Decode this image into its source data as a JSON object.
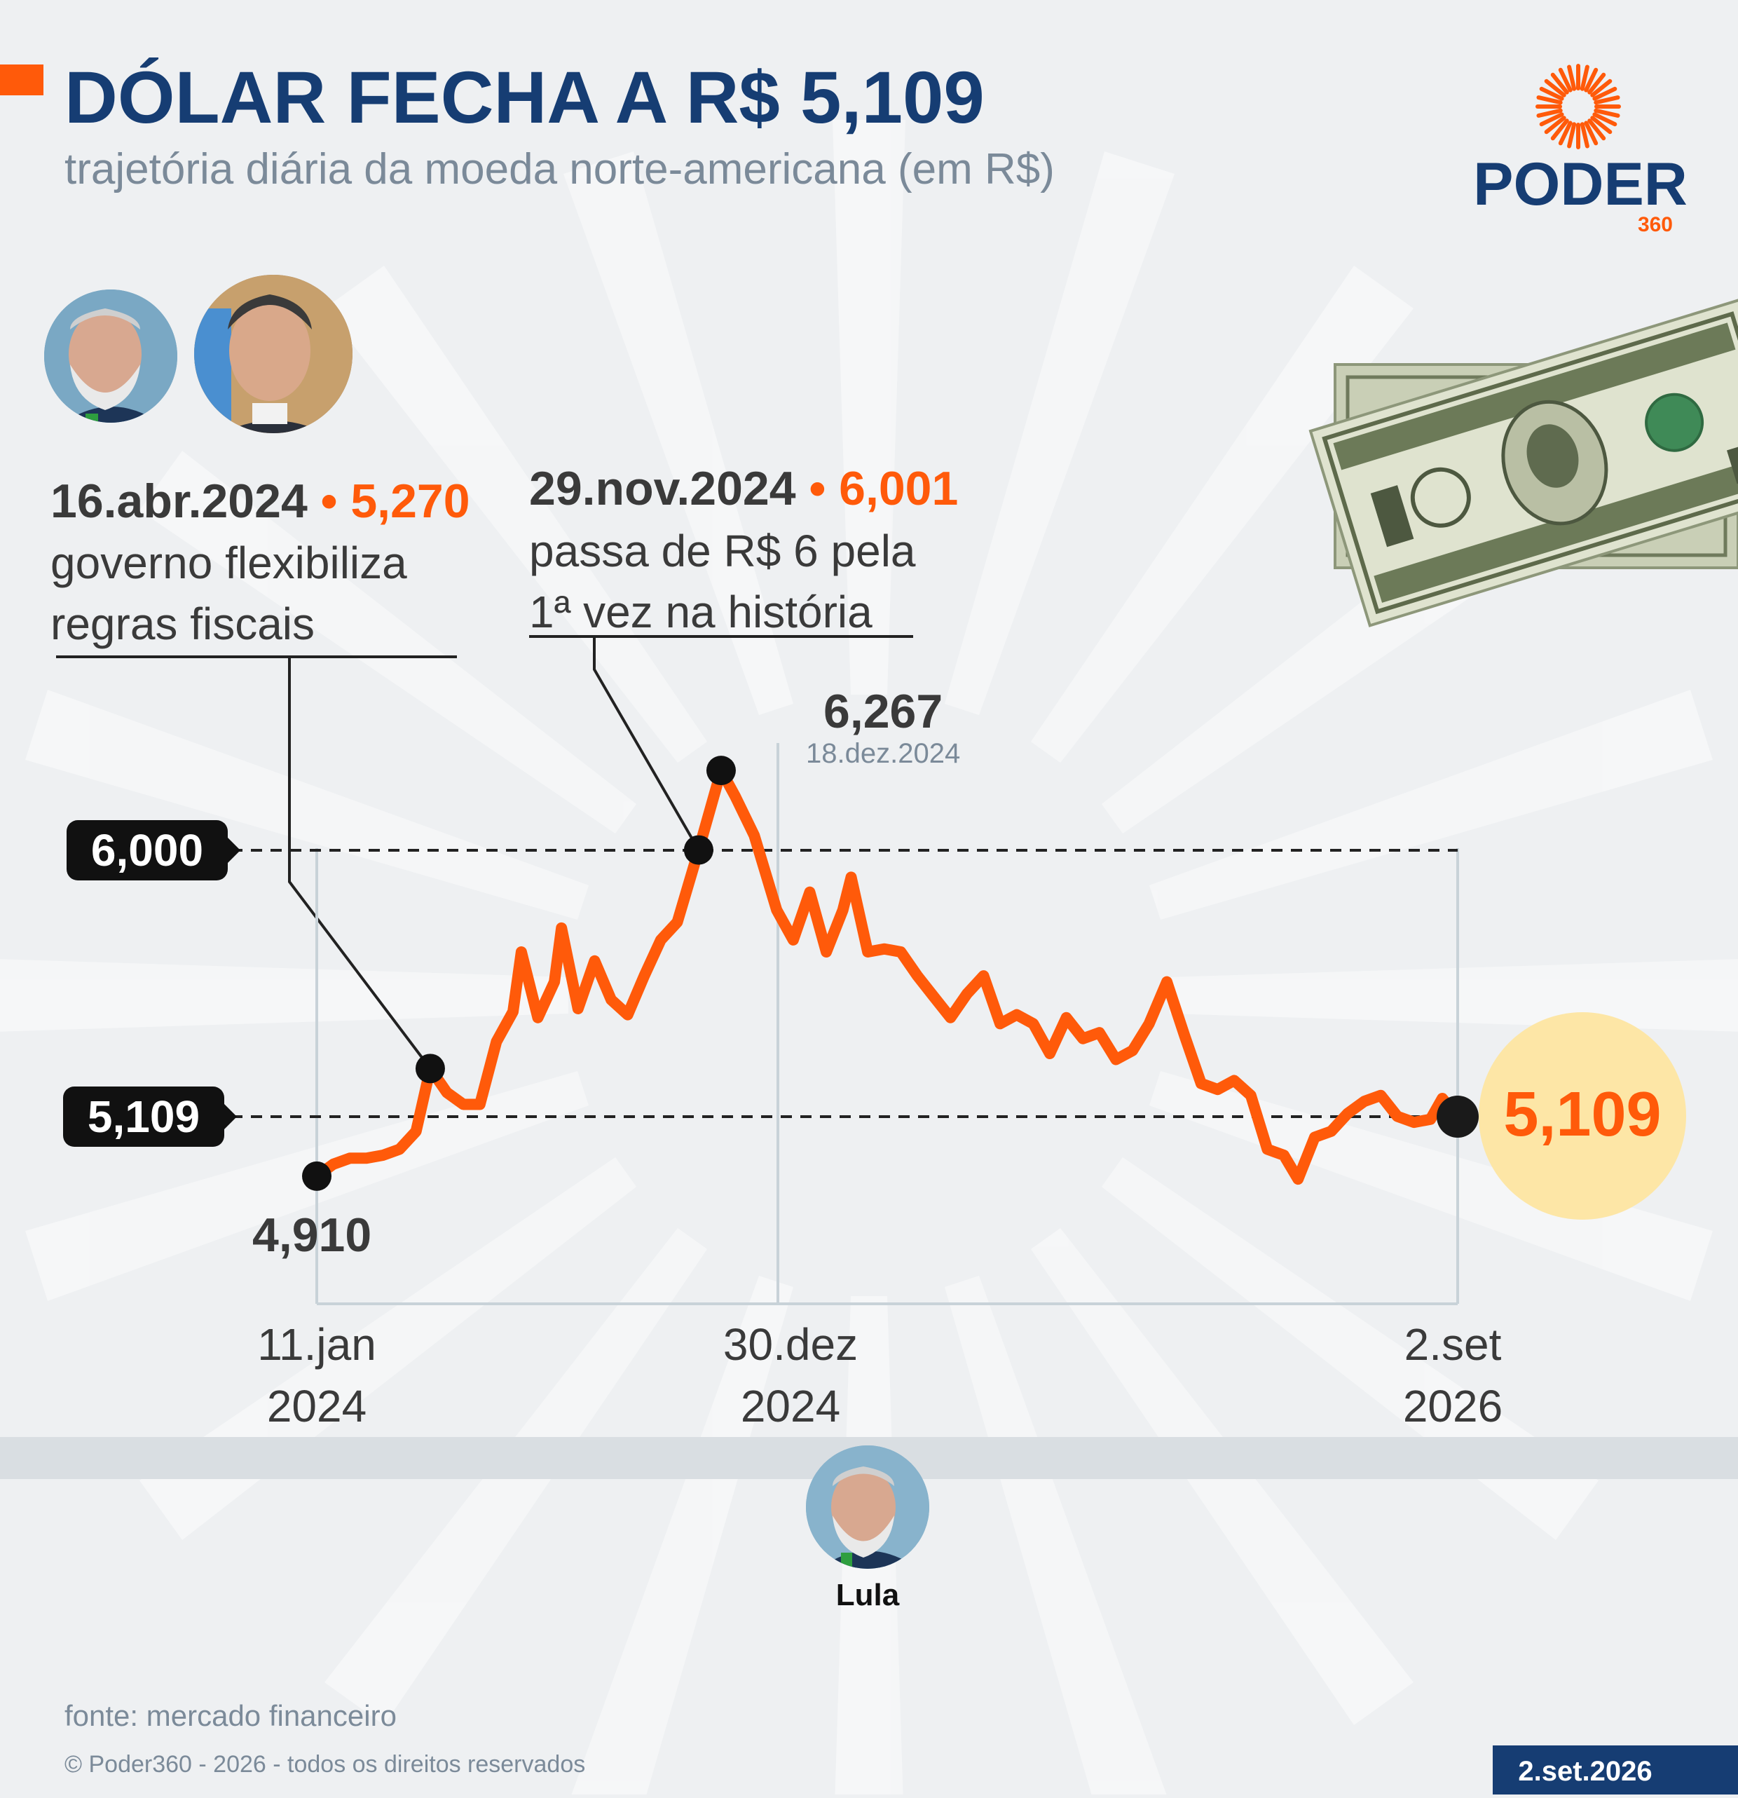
{
  "header": {
    "title": "DÓLAR FECHA A R$ 5,109",
    "subtitle": "trajetória diária da moeda norte-americana (em R$)"
  },
  "brand": {
    "name": "PODER",
    "number": "360"
  },
  "annotations": {
    "april": {
      "date": "16.abr.2024",
      "bullet": " • ",
      "value": "5,270",
      "line1": "governo flexibiliza",
      "line2": "regras fiscais"
    },
    "november": {
      "date": "29.nov.2024",
      "bullet": " • ",
      "value": "6,001",
      "line1": "passa de R$ 6 pela",
      "line2": "1ª vez na história"
    },
    "peak": {
      "value": "6,267",
      "date": "18.dez.2024"
    },
    "start": {
      "value": "4,910"
    },
    "end": {
      "value": "5,109"
    }
  },
  "reference_lines": [
    {
      "label": "6,000",
      "value": 6.0
    },
    {
      "label": "5,109",
      "value": 5.109
    }
  ],
  "x_axis": [
    {
      "line1": "11.jan",
      "line2": "2024"
    },
    {
      "line1": "30.dez",
      "line2": "2024"
    },
    {
      "line1": "2.set",
      "line2": "2026"
    }
  ],
  "president": {
    "name": "Lula"
  },
  "footer": {
    "source": "fonte: mercado financeiro",
    "copyright": "© Poder360 - 2026 - todos os direitos reservados",
    "date": "2.set.2026"
  },
  "colors": {
    "navy": "#163d73",
    "orange": "#ff5a0a",
    "dark": "#3a3a3a",
    "gray": "#7b8a99",
    "highlight": "#fde6a6",
    "band": "#d9dee2"
  },
  "chart_data": {
    "type": "line",
    "title": "DÓLAR FECHA A R$ 5,109",
    "subtitle": "trajetória diária da moeda norte-americana (em R$)",
    "xlabel": "",
    "ylabel": "",
    "x_range": [
      "2024-01-11",
      "2026-09-02"
    ],
    "x_ticks": [
      "2024-01-11",
      "2024-12-30",
      "2026-09-02"
    ],
    "series": [
      {
        "values": [
          [
            "2024-01-11",
            4.91
          ],
          [
            "2024-01-25",
            4.95
          ],
          [
            "2024-02-08",
            4.97
          ],
          [
            "2024-02-22",
            4.97
          ],
          [
            "2024-03-07",
            4.98
          ],
          [
            "2024-03-21",
            5.0
          ],
          [
            "2024-04-04",
            5.06
          ],
          [
            "2024-04-16",
            5.27
          ],
          [
            "2024-04-30",
            5.19
          ],
          [
            "2024-05-14",
            5.15
          ],
          [
            "2024-05-28",
            5.15
          ],
          [
            "2024-06-11",
            5.36
          ],
          [
            "2024-06-25",
            5.46
          ],
          [
            "2024-07-02",
            5.66
          ],
          [
            "2024-07-16",
            5.44
          ],
          [
            "2024-07-30",
            5.56
          ],
          [
            "2024-08-05",
            5.74
          ],
          [
            "2024-08-19",
            5.47
          ],
          [
            "2024-09-02",
            5.63
          ],
          [
            "2024-09-16",
            5.5
          ],
          [
            "2024-09-30",
            5.45
          ],
          [
            "2024-10-14",
            5.58
          ],
          [
            "2024-10-28",
            5.7
          ],
          [
            "2024-11-11",
            5.76
          ],
          [
            "2024-11-29",
            6.001
          ],
          [
            "2024-12-18",
            6.267
          ],
          [
            "2024-12-30",
            6.18
          ],
          [
            "2025-01-15",
            6.05
          ],
          [
            "2025-02-03",
            5.8
          ],
          [
            "2025-02-17",
            5.7
          ],
          [
            "2025-03-03",
            5.86
          ],
          [
            "2025-03-17",
            5.66
          ],
          [
            "2025-03-31",
            5.8
          ],
          [
            "2025-04-07",
            5.91
          ],
          [
            "2025-04-21",
            5.66
          ],
          [
            "2025-05-05",
            5.67
          ],
          [
            "2025-05-19",
            5.66
          ],
          [
            "2025-06-02",
            5.58
          ],
          [
            "2025-06-16",
            5.51
          ],
          [
            "2025-06-30",
            5.44
          ],
          [
            "2025-07-14",
            5.52
          ],
          [
            "2025-07-28",
            5.58
          ],
          [
            "2025-08-11",
            5.42
          ],
          [
            "2025-08-25",
            5.45
          ],
          [
            "2025-09-08",
            5.42
          ],
          [
            "2025-09-22",
            5.32
          ],
          [
            "2025-10-06",
            5.44
          ],
          [
            "2025-10-20",
            5.37
          ],
          [
            "2025-11-03",
            5.39
          ],
          [
            "2025-11-17",
            5.3
          ],
          [
            "2025-12-01",
            5.33
          ],
          [
            "2025-12-15",
            5.42
          ],
          [
            "2025-12-30",
            5.56
          ],
          [
            "2026-01-14",
            5.38
          ],
          [
            "2026-01-28",
            5.22
          ],
          [
            "2026-02-11",
            5.2
          ],
          [
            "2026-02-25",
            5.23
          ],
          [
            "2026-03-11",
            5.18
          ],
          [
            "2026-03-25",
            5.0
          ],
          [
            "2026-04-08",
            4.98
          ],
          [
            "2026-04-20",
            4.9
          ],
          [
            "2026-05-04",
            5.04
          ],
          [
            "2026-05-18",
            5.06
          ],
          [
            "2026-06-01",
            5.12
          ],
          [
            "2026-06-15",
            5.16
          ],
          [
            "2026-06-29",
            5.18
          ],
          [
            "2026-07-13",
            5.11
          ],
          [
            "2026-07-27",
            5.09
          ],
          [
            "2026-08-10",
            5.1
          ],
          [
            "2026-08-20",
            5.17
          ],
          [
            "2026-09-02",
            5.109
          ]
        ]
      }
    ],
    "highlights": [
      {
        "date": "2024-01-11",
        "value": 4.91,
        "label": "4,910"
      },
      {
        "date": "2024-04-16",
        "value": 5.27,
        "label": "5,270"
      },
      {
        "date": "2024-11-29",
        "value": 6.001,
        "label": "6,001"
      },
      {
        "date": "2024-12-18",
        "value": 6.267,
        "label": "6,267"
      },
      {
        "date": "2026-09-02",
        "value": 5.109,
        "label": "5,109"
      }
    ],
    "reference_lines": [
      6.0,
      5.109
    ],
    "grid": false,
    "legend": "none"
  }
}
